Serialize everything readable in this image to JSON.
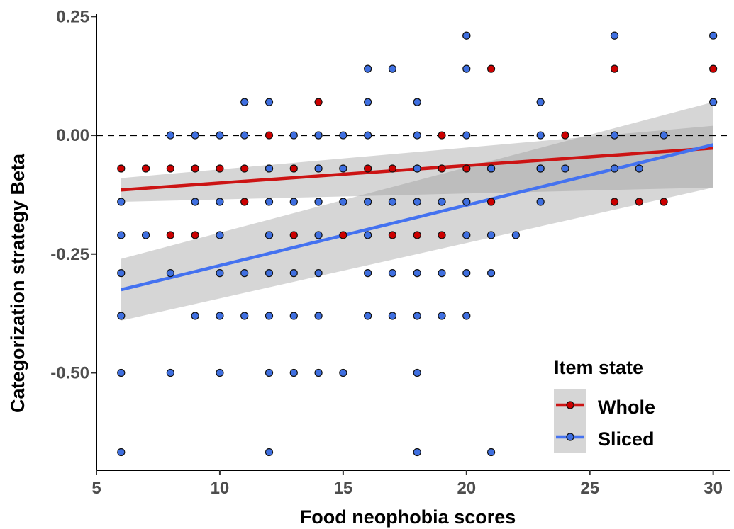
{
  "chart_data": {
    "type": "scatter",
    "title": "",
    "xlabel": "Food neophobia scores",
    "ylabel": "Categorization strategy Beta",
    "xlim": [
      5,
      30.7
    ],
    "ylim": [
      -0.705,
      0.255
    ],
    "x_ticks": [
      5,
      10,
      15,
      20,
      25,
      30
    ],
    "y_ticks": [
      0.25,
      0.0,
      -0.25,
      -0.5
    ],
    "x_tick_labels": [
      "5",
      "10",
      "15",
      "20",
      "25",
      "30"
    ],
    "y_tick_labels": [
      "0.25",
      "0.00",
      "-0.25",
      "-0.50"
    ],
    "reference_line": {
      "y": 0.0,
      "style": "dashed",
      "color": "#000000"
    },
    "grid": false,
    "legend": {
      "title": "Item state",
      "position": "bottom-right"
    },
    "series": [
      {
        "name": "Whole",
        "color": "#cc0000",
        "line_color": "#cc1414",
        "fit": {
          "x_start": 6,
          "x_end": 30,
          "y_start": -0.115,
          "y_end": -0.027,
          "ci_start": [
            -0.14,
            -0.09
          ],
          "ci_end": [
            -0.11,
            0.02
          ]
        },
        "points": [
          [
            6,
            -0.07
          ],
          [
            7,
            -0.07
          ],
          [
            8,
            -0.07
          ],
          [
            9,
            -0.07
          ],
          [
            10,
            -0.07
          ],
          [
            11,
            -0.07
          ],
          [
            12,
            -0.07
          ],
          [
            13,
            -0.07
          ],
          [
            16,
            -0.07
          ],
          [
            17,
            -0.07
          ],
          [
            18,
            -0.07
          ],
          [
            19,
            -0.07
          ],
          [
            20,
            -0.07
          ],
          [
            21,
            -0.07
          ],
          [
            23,
            -0.07
          ],
          [
            8,
            -0.21
          ],
          [
            9,
            -0.21
          ],
          [
            12,
            -0.21
          ],
          [
            13,
            -0.21
          ],
          [
            15,
            -0.21
          ],
          [
            17,
            -0.21
          ],
          [
            18,
            -0.21
          ],
          [
            19,
            -0.21
          ],
          [
            11,
            -0.14
          ],
          [
            21,
            -0.14
          ],
          [
            26,
            -0.14
          ],
          [
            27,
            -0.14
          ],
          [
            28,
            -0.14
          ],
          [
            12,
            0.0
          ],
          [
            14,
            0.0
          ],
          [
            19,
            0.0
          ],
          [
            24,
            0.0
          ],
          [
            26,
            0.0
          ],
          [
            14,
            0.07
          ],
          [
            21,
            0.14
          ],
          [
            26,
            0.14
          ],
          [
            30,
            0.14
          ],
          [
            20,
            0.21
          ],
          [
            26,
            0.21
          ]
        ]
      },
      {
        "name": "Sliced",
        "color": "#3f6fe0",
        "line_color": "#4472f0",
        "fit": {
          "x_start": 6,
          "x_end": 30,
          "y_start": -0.325,
          "y_end": -0.02,
          "ci_start": [
            -0.39,
            -0.26
          ],
          "ci_end": [
            -0.11,
            0.07
          ]
        },
        "points": [
          [
            20,
            0.21
          ],
          [
            26,
            0.21
          ],
          [
            30,
            0.21
          ],
          [
            16,
            0.14
          ],
          [
            17,
            0.14
          ],
          [
            20,
            0.14
          ],
          [
            11,
            0.07
          ],
          [
            12,
            0.07
          ],
          [
            16,
            0.07
          ],
          [
            18,
            0.07
          ],
          [
            23,
            0.07
          ],
          [
            30,
            0.07
          ],
          [
            8,
            0.0
          ],
          [
            9,
            0.0
          ],
          [
            10,
            0.0
          ],
          [
            11,
            0.0
          ],
          [
            13,
            0.0
          ],
          [
            14,
            0.0
          ],
          [
            15,
            0.0
          ],
          [
            16,
            0.0
          ],
          [
            18,
            0.0
          ],
          [
            20,
            0.0
          ],
          [
            23,
            0.0
          ],
          [
            26,
            0.0
          ],
          [
            28,
            0.0
          ],
          [
            12,
            -0.07
          ],
          [
            14,
            -0.07
          ],
          [
            15,
            -0.07
          ],
          [
            18,
            -0.07
          ],
          [
            21,
            -0.07
          ],
          [
            23,
            -0.07
          ],
          [
            24,
            -0.07
          ],
          [
            26,
            -0.07
          ],
          [
            27,
            -0.07
          ],
          [
            6,
            -0.14
          ],
          [
            9,
            -0.14
          ],
          [
            10,
            -0.14
          ],
          [
            12,
            -0.14
          ],
          [
            13,
            -0.14
          ],
          [
            14,
            -0.14
          ],
          [
            15,
            -0.14
          ],
          [
            16,
            -0.14
          ],
          [
            17,
            -0.14
          ],
          [
            18,
            -0.14
          ],
          [
            19,
            -0.14
          ],
          [
            20,
            -0.14
          ],
          [
            23,
            -0.14
          ],
          [
            6,
            -0.21
          ],
          [
            7,
            -0.21
          ],
          [
            10,
            -0.21
          ],
          [
            12,
            -0.21
          ],
          [
            14,
            -0.21
          ],
          [
            16,
            -0.21
          ],
          [
            20,
            -0.21
          ],
          [
            21,
            -0.21
          ],
          [
            22,
            -0.21
          ],
          [
            6,
            -0.29
          ],
          [
            8,
            -0.29
          ],
          [
            10,
            -0.29
          ],
          [
            11,
            -0.29
          ],
          [
            12,
            -0.29
          ],
          [
            13,
            -0.29
          ],
          [
            14,
            -0.29
          ],
          [
            16,
            -0.29
          ],
          [
            17,
            -0.29
          ],
          [
            18,
            -0.29
          ],
          [
            19,
            -0.29
          ],
          [
            20,
            -0.29
          ],
          [
            21,
            -0.29
          ],
          [
            6,
            -0.38
          ],
          [
            9,
            -0.38
          ],
          [
            10,
            -0.38
          ],
          [
            11,
            -0.38
          ],
          [
            12,
            -0.38
          ],
          [
            13,
            -0.38
          ],
          [
            14,
            -0.38
          ],
          [
            16,
            -0.38
          ],
          [
            17,
            -0.38
          ],
          [
            18,
            -0.38
          ],
          [
            19,
            -0.38
          ],
          [
            20,
            -0.38
          ],
          [
            6,
            -0.5
          ],
          [
            8,
            -0.5
          ],
          [
            10,
            -0.5
          ],
          [
            12,
            -0.5
          ],
          [
            13,
            -0.5
          ],
          [
            14,
            -0.5
          ],
          [
            15,
            -0.5
          ],
          [
            18,
            -0.5
          ],
          [
            6,
            -0.667
          ],
          [
            12,
            -0.667
          ],
          [
            18,
            -0.667
          ],
          [
            21,
            -0.667
          ]
        ]
      }
    ]
  }
}
